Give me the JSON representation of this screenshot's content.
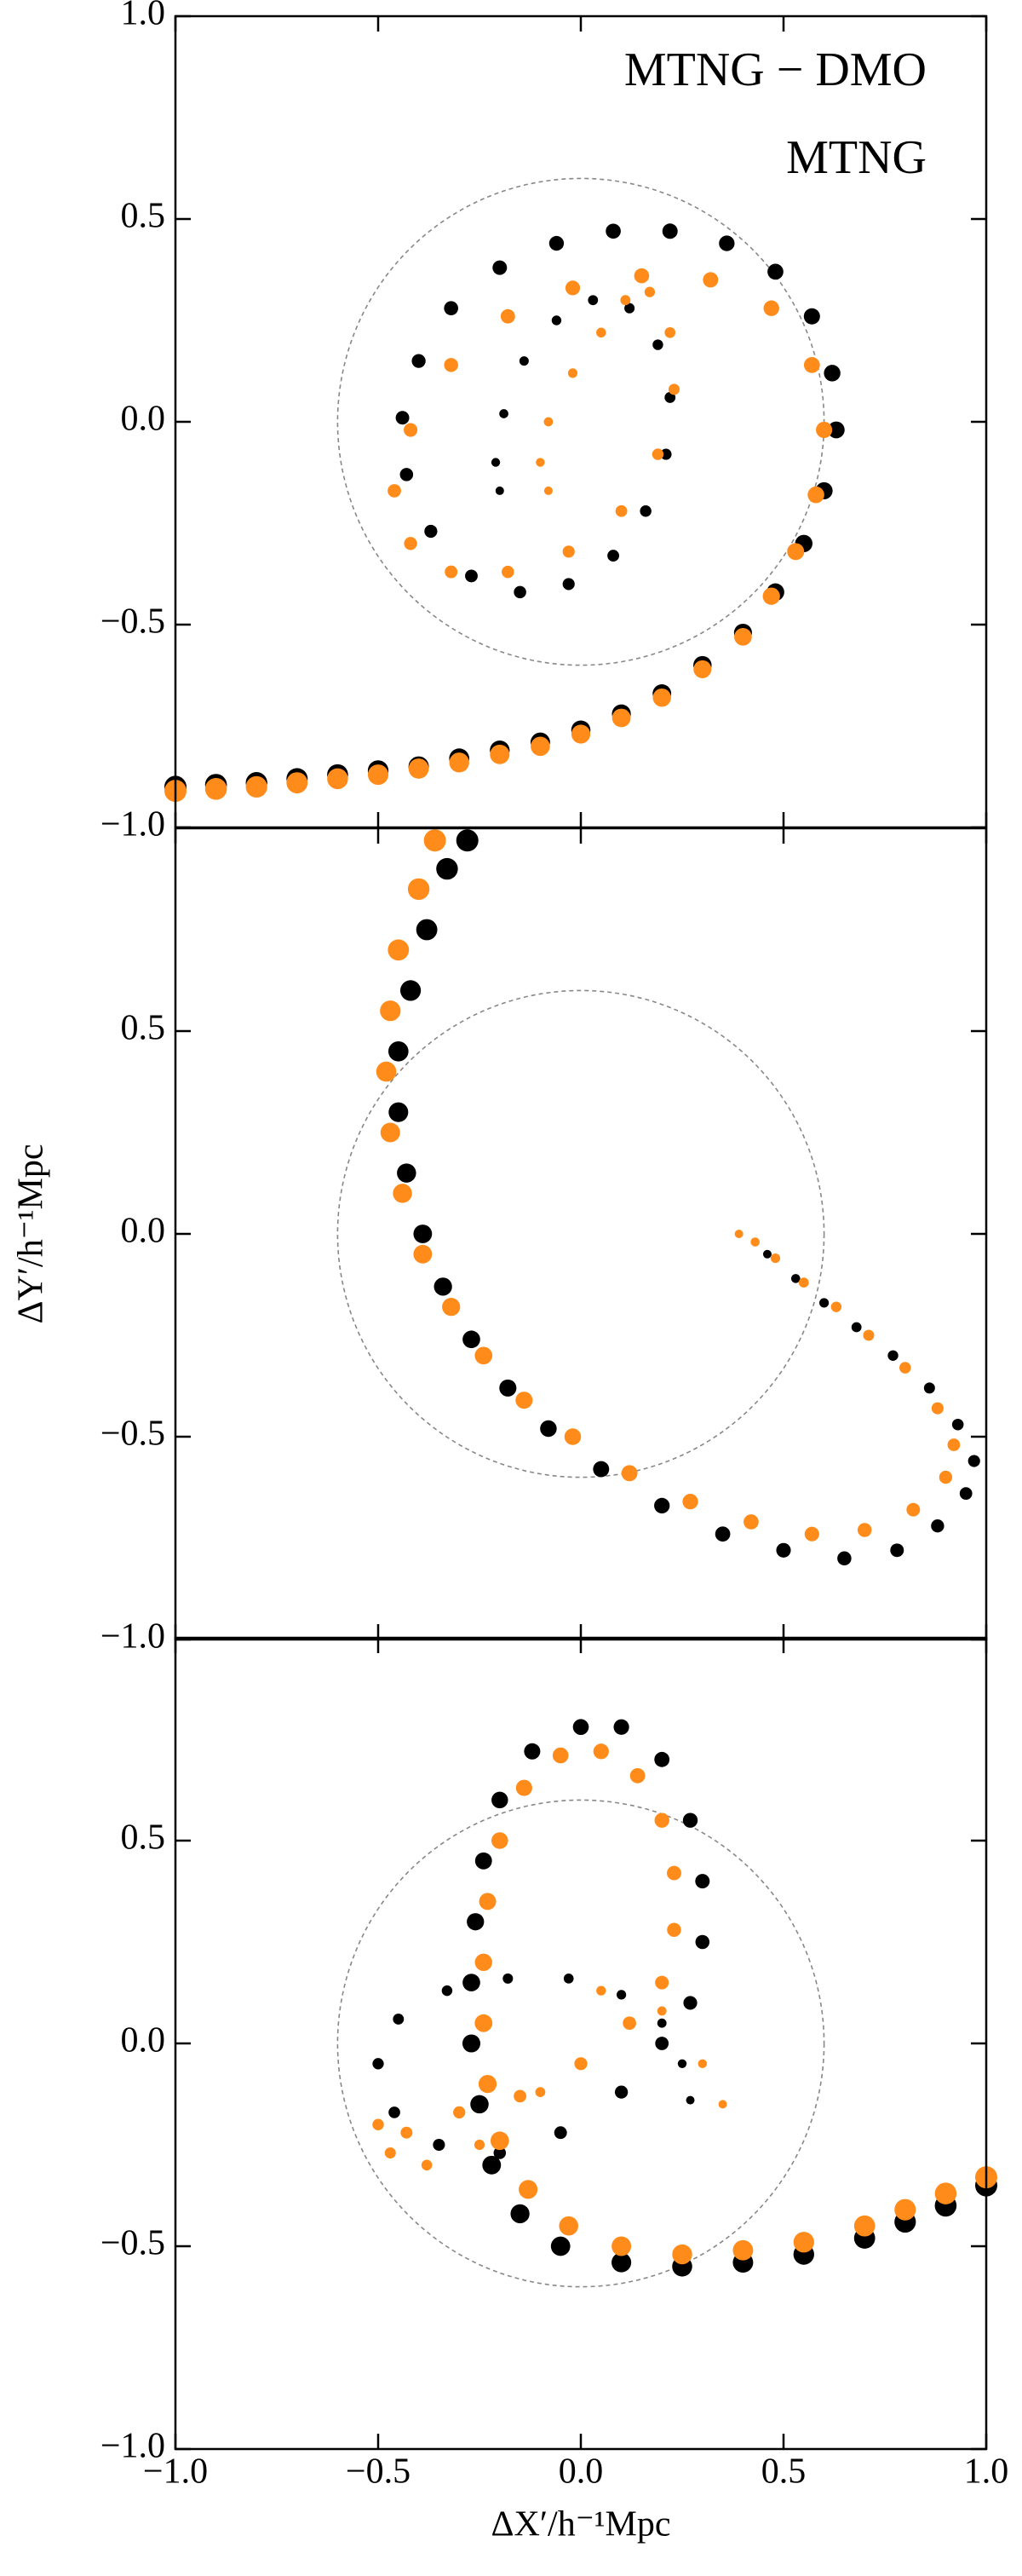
{
  "chart_data": [
    {
      "type": "scatter",
      "xlim": [
        -1,
        1
      ],
      "ylim": [
        -1,
        1
      ],
      "xtick_labels": false,
      "circle_radius": 0.6,
      "legend": "upper right",
      "xticks": [
        -1,
        -0.5,
        0,
        0.5,
        1
      ],
      "yticks": [
        {
          "value": -1,
          "label": "−1.0"
        },
        {
          "value": -0.5,
          "label": "−0.5"
        },
        {
          "value": 0,
          "label": "0.0"
        },
        0.5,
        {
          "value": 1,
          "label": "1.0"
        }
      ],
      "series": [
        {
          "name": "MTNG − DMO",
          "color": "#000000",
          "x": [
            -1,
            -0.9,
            -0.8,
            -0.7,
            -0.6,
            -0.5,
            -0.4,
            -0.3,
            -0.2,
            -0.1,
            0,
            0.1,
            0.2,
            0.3,
            0.4,
            0.48,
            0.55,
            0.6,
            0.63,
            0.62,
            0.57,
            0.48,
            0.36,
            0.22,
            0.08,
            -0.06,
            -0.2,
            -0.32,
            -0.4,
            -0.44,
            -0.43,
            -0.37,
            -0.27,
            -0.15,
            -0.03,
            0.08,
            0.16,
            0.21,
            0.22,
            0.19,
            0.12,
            0.03,
            -0.06,
            -0.14,
            -0.19,
            -0.21,
            -0.2
          ],
          "y": [
            -0.9,
            -0.895,
            -0.89,
            -0.88,
            -0.87,
            -0.86,
            -0.85,
            -0.83,
            -0.81,
            -0.79,
            -0.76,
            -0.72,
            -0.67,
            -0.6,
            -0.52,
            -0.42,
            -0.3,
            -0.17,
            -0.02,
            0.12,
            0.26,
            0.37,
            0.44,
            0.47,
            0.47,
            0.44,
            0.38,
            0.28,
            0.15,
            0.01,
            -0.13,
            -0.27,
            -0.38,
            -0.42,
            -0.4,
            -0.33,
            -0.22,
            -0.08,
            0.06,
            0.19,
            0.28,
            0.3,
            0.25,
            0.15,
            0.02,
            -0.1,
            -0.17
          ]
        },
        {
          "name": "MTNG",
          "color": "#ff8c1a",
          "x": [
            -1,
            -0.9,
            -0.8,
            -0.7,
            -0.6,
            -0.5,
            -0.4,
            -0.3,
            -0.2,
            -0.1,
            0,
            0.1,
            0.2,
            0.3,
            0.4,
            0.47,
            0.53,
            0.58,
            0.6,
            0.57,
            0.47,
            0.32,
            0.15,
            -0.02,
            -0.18,
            -0.32,
            -0.42,
            -0.46,
            -0.42,
            -0.32,
            -0.18,
            -0.03,
            0.1,
            0.19,
            0.23,
            0.22,
            0.17,
            0.11,
            0.05,
            -0.02,
            -0.08,
            -0.1,
            -0.08
          ],
          "y": [
            -0.91,
            -0.905,
            -0.9,
            -0.89,
            -0.88,
            -0.87,
            -0.855,
            -0.84,
            -0.82,
            -0.8,
            -0.77,
            -0.73,
            -0.68,
            -0.61,
            -0.53,
            -0.43,
            -0.32,
            -0.18,
            -0.02,
            0.14,
            0.28,
            0.35,
            0.36,
            0.33,
            0.26,
            0.14,
            -0.02,
            -0.17,
            -0.3,
            -0.37,
            -0.37,
            -0.32,
            -0.22,
            -0.08,
            0.08,
            0.22,
            0.32,
            0.3,
            0.22,
            0.12,
            0,
            -0.1,
            -0.17
          ]
        }
      ]
    },
    {
      "type": "scatter",
      "xlim": [
        -1,
        1
      ],
      "ylim": [
        -1,
        1
      ],
      "xtick_labels": false,
      "circle_radius": 0.6,
      "ylabel": "ΔY′/h⁻¹Mpc",
      "xticks": [
        -1,
        -0.5,
        0,
        0.5,
        1
      ],
      "yticks": [
        {
          "value": -1,
          "label": "−1.0"
        },
        {
          "value": -0.5,
          "label": "−0.5"
        },
        {
          "value": 0,
          "label": "0.0"
        },
        0.5
      ],
      "series": [
        {
          "name": "MTNG − DMO",
          "color": "#000000",
          "x": [
            -0.28,
            -0.33,
            -0.38,
            -0.42,
            -0.45,
            -0.45,
            -0.43,
            -0.39,
            -0.34,
            -0.27,
            -0.18,
            -0.08,
            0.05,
            0.2,
            0.35,
            0.5,
            0.65,
            0.78,
            0.88,
            0.95,
            0.97,
            0.93,
            0.86,
            0.77,
            0.68,
            0.6,
            0.53,
            0.46
          ],
          "y": [
            0.97,
            0.9,
            0.75,
            0.6,
            0.45,
            0.3,
            0.15,
            0,
            -0.13,
            -0.26,
            -0.38,
            -0.48,
            -0.58,
            -0.67,
            -0.74,
            -0.78,
            -0.8,
            -0.78,
            -0.72,
            -0.64,
            -0.56,
            -0.47,
            -0.38,
            -0.3,
            -0.23,
            -0.17,
            -0.11,
            -0.05
          ]
        },
        {
          "name": "MTNG",
          "color": "#ff8c1a",
          "x": [
            -0.36,
            -0.4,
            -0.45,
            -0.47,
            -0.48,
            -0.47,
            -0.44,
            -0.39,
            -0.32,
            -0.24,
            -0.14,
            -0.02,
            0.12,
            0.27,
            0.42,
            0.57,
            0.7,
            0.82,
            0.9,
            0.92,
            0.88,
            0.8,
            0.71,
            0.63,
            0.55,
            0.48,
            0.43,
            0.39
          ],
          "y": [
            0.97,
            0.85,
            0.7,
            0.55,
            0.4,
            0.25,
            0.1,
            -0.05,
            -0.18,
            -0.3,
            -0.41,
            -0.5,
            -0.59,
            -0.66,
            -0.71,
            -0.74,
            -0.73,
            -0.68,
            -0.6,
            -0.52,
            -0.43,
            -0.33,
            -0.25,
            -0.18,
            -0.12,
            -0.06,
            -0.02,
            0
          ]
        }
      ]
    },
    {
      "type": "scatter",
      "xlim": [
        -1,
        1
      ],
      "ylim": [
        -1,
        1
      ],
      "xtick_labels": true,
      "circle_radius": 0.6,
      "xlabel": "ΔX′/h⁻¹Mpc",
      "xticks": [
        {
          "value": -1,
          "label": "−1.0"
        },
        {
          "value": -0.5,
          "label": "−0.5"
        },
        {
          "value": 0,
          "label": "0.0"
        },
        0.5,
        {
          "value": 1,
          "label": "1.0"
        }
      ],
      "yticks": [
        {
          "value": -1,
          "label": "−1.0"
        },
        {
          "value": -0.5,
          "label": "−0.5"
        },
        {
          "value": 0,
          "label": "0.0"
        },
        0.5
      ],
      "series": [
        {
          "name": "MTNG − DMO",
          "color": "#000000",
          "x": [
            1,
            0.9,
            0.8,
            0.7,
            0.55,
            0.4,
            0.25,
            0.1,
            -0.05,
            -0.15,
            -0.22,
            -0.25,
            -0.27,
            -0.27,
            -0.26,
            -0.24,
            -0.2,
            -0.12,
            0,
            0.1,
            0.2,
            0.27,
            0.3,
            0.3,
            0.27,
            0.2,
            0.1,
            -0.05,
            -0.2,
            -0.35,
            -0.46,
            -0.5,
            -0.45,
            -0.33,
            -0.18,
            -0.03,
            0.1,
            0.2,
            0.25,
            0.27
          ],
          "y": [
            -0.35,
            -0.4,
            -0.44,
            -0.48,
            -0.52,
            -0.54,
            -0.55,
            -0.54,
            -0.5,
            -0.42,
            -0.3,
            -0.15,
            0,
            0.15,
            0.3,
            0.45,
            0.6,
            0.72,
            0.78,
            0.78,
            0.7,
            0.55,
            0.4,
            0.25,
            0.1,
            0,
            -0.12,
            -0.22,
            -0.27,
            -0.25,
            -0.17,
            -0.05,
            0.06,
            0.13,
            0.16,
            0.16,
            0.12,
            0.05,
            -0.05,
            -0.14
          ]
        },
        {
          "name": "MTNG",
          "color": "#ff8c1a",
          "x": [
            1,
            0.9,
            0.8,
            0.7,
            0.55,
            0.4,
            0.25,
            0.1,
            -0.03,
            -0.13,
            -0.2,
            -0.23,
            -0.24,
            -0.24,
            -0.23,
            -0.2,
            -0.14,
            -0.05,
            0.05,
            0.14,
            0.2,
            0.23,
            0.23,
            0.2,
            0.12,
            0,
            -0.15,
            -0.3,
            -0.43,
            -0.5,
            -0.47,
            -0.38,
            -0.25,
            -0.1,
            0.05,
            0.2,
            0.3,
            0.35
          ],
          "y": [
            -0.33,
            -0.37,
            -0.41,
            -0.45,
            -0.49,
            -0.51,
            -0.52,
            -0.5,
            -0.45,
            -0.36,
            -0.24,
            -0.1,
            0.05,
            0.2,
            0.35,
            0.5,
            0.63,
            0.71,
            0.72,
            0.66,
            0.55,
            0.42,
            0.28,
            0.15,
            0.05,
            -0.05,
            -0.13,
            -0.17,
            -0.22,
            -0.2,
            -0.27,
            -0.3,
            -0.25,
            -0.12,
            0.13,
            0.08,
            -0.05,
            -0.15
          ]
        }
      ]
    }
  ]
}
